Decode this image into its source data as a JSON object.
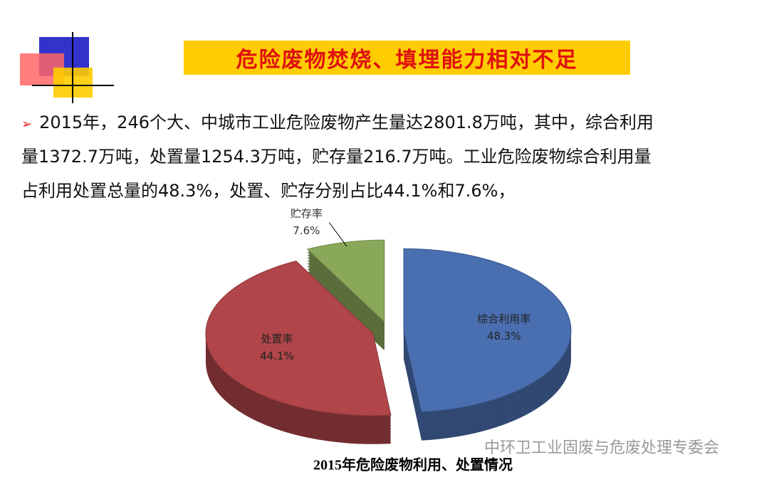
{
  "header": {
    "title": "危险废物焚烧、填埋能力相对不足"
  },
  "paragraph": {
    "lines": [
      "2015年，246个大、中城市工业危险废物产生量达2801.8万吨，其中，综合利用",
      "量1372.7万吨，处置量1254.3万吨，贮存量216.7万吨。工业危险废物综合利用量",
      "占利用处置总量的48.3%，处置、贮存分别占比44.1%和7.6%，"
    ]
  },
  "chart_data": {
    "type": "pie",
    "title": "2015年危险废物利用、处置情况",
    "categories": [
      "综合利用率",
      "处置率",
      "贮存率"
    ],
    "values": [
      48.3,
      44.1,
      7.6
    ],
    "value_labels": [
      "48.3%",
      "44.1%",
      "7.6%"
    ],
    "colors": [
      "#4a6fb0",
      "#b0454a",
      "#8aa85a"
    ]
  },
  "watermark": {
    "text": "中环卫工业固废与危废处理专委会"
  }
}
